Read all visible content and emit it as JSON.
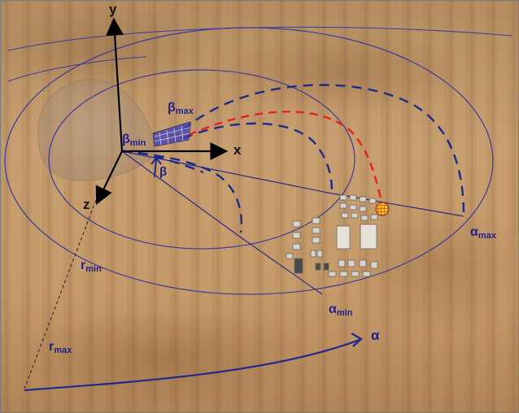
{
  "axes": {
    "y_label": "y",
    "x_label": "x",
    "z_label": "z"
  },
  "labels": {
    "beta": "β",
    "beta_min": "β",
    "beta_min_sub": "min",
    "beta_max": "β",
    "beta_max_sub": "max",
    "r_min": "r",
    "r_min_sub": "min",
    "r_max": "r",
    "r_max_sub": "max",
    "alpha": "α",
    "alpha_min": "α",
    "alpha_min_sub": "min",
    "alpha_max": "α",
    "alpha_max_sub": "max"
  },
  "colors": {
    "rings": "#3a3aa0",
    "trajectory_dashed": "#1c2a8c",
    "selected_trajectory": "#e82020",
    "labels": "#1f1f8a",
    "axes": "#000000",
    "target": "#f0c020"
  }
}
